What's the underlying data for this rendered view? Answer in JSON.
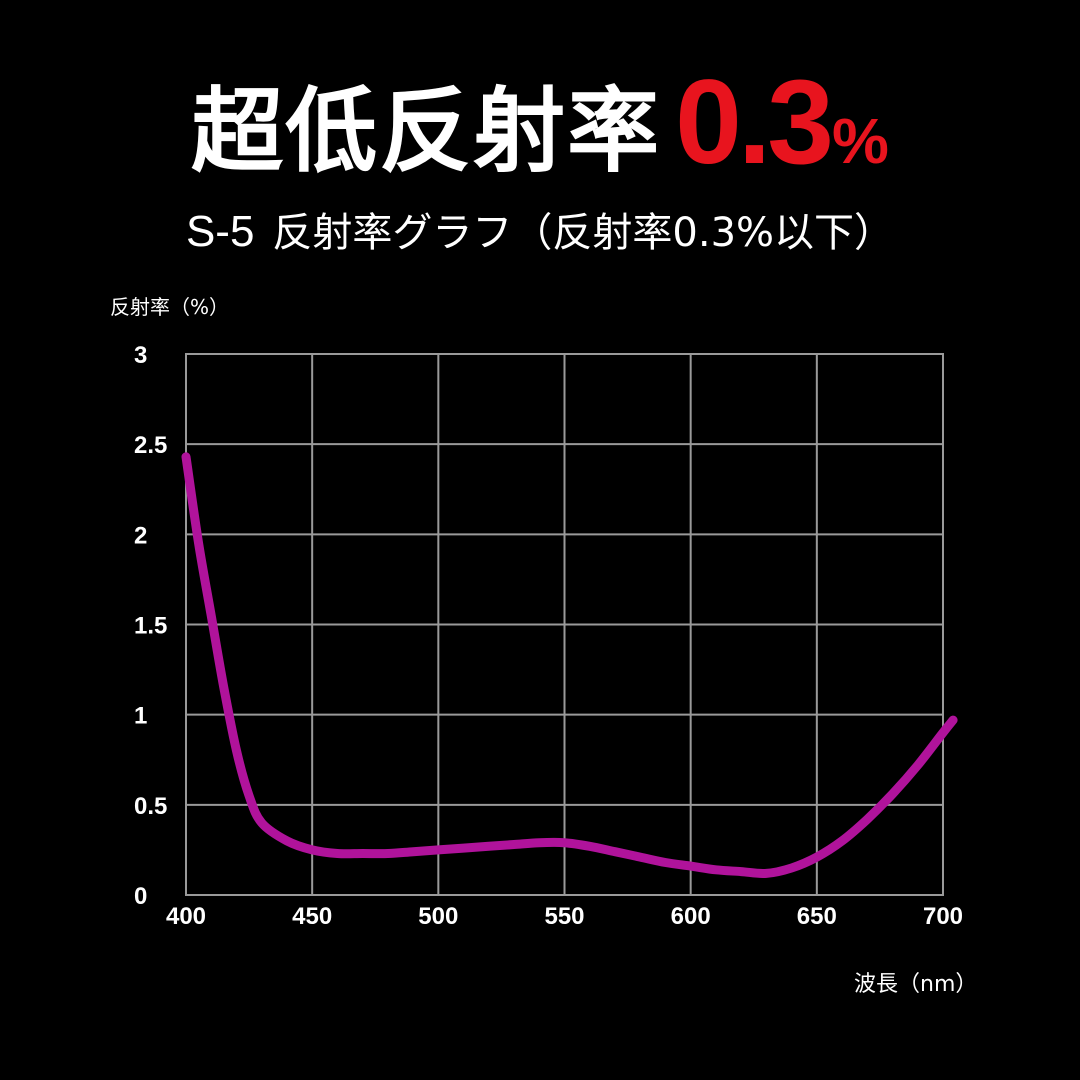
{
  "header": {
    "headline_text": "超低反射率",
    "headline_value": "0.3",
    "headline_unit": "%",
    "model": "S-5",
    "subtitle": "反射率グラフ（反射率0.3%以下）"
  },
  "colors": {
    "background": "#000000",
    "accent": "#e8141e",
    "curve": "#b0139b",
    "grid": "#9a9a9a"
  },
  "chart_data": {
    "type": "line",
    "title": "",
    "xlabel": "波長（nm）",
    "ylabel": "反射率（%）",
    "xlim": [
      400,
      700
    ],
    "ylim": [
      0,
      3
    ],
    "xticks": [
      400,
      450,
      500,
      550,
      600,
      650,
      700
    ],
    "yticks": [
      0,
      0.5,
      1,
      1.5,
      2,
      2.5,
      3
    ],
    "xtick_labels": [
      "400",
      "450",
      "500",
      "550",
      "600",
      "650",
      "700"
    ],
    "ytick_labels": [
      "0",
      "0.5",
      "1",
      "1.5",
      "2",
      "2.5",
      "3"
    ],
    "grid": true,
    "series": [
      {
        "x": [
          400,
          405,
          410,
          415,
          420,
          425,
          430,
          440,
          450,
          460,
          470,
          480,
          490,
          500,
          510,
          520,
          530,
          540,
          550,
          560,
          570,
          580,
          590,
          600,
          610,
          620,
          630,
          640,
          650,
          660,
          670,
          680,
          690,
          700,
          704
        ],
        "y": [
          2.43,
          1.95,
          1.55,
          1.15,
          0.8,
          0.55,
          0.4,
          0.3,
          0.25,
          0.23,
          0.23,
          0.23,
          0.24,
          0.25,
          0.26,
          0.27,
          0.28,
          0.29,
          0.29,
          0.27,
          0.24,
          0.21,
          0.18,
          0.16,
          0.14,
          0.13,
          0.12,
          0.15,
          0.21,
          0.3,
          0.42,
          0.56,
          0.72,
          0.9,
          0.97
        ]
      }
    ]
  }
}
